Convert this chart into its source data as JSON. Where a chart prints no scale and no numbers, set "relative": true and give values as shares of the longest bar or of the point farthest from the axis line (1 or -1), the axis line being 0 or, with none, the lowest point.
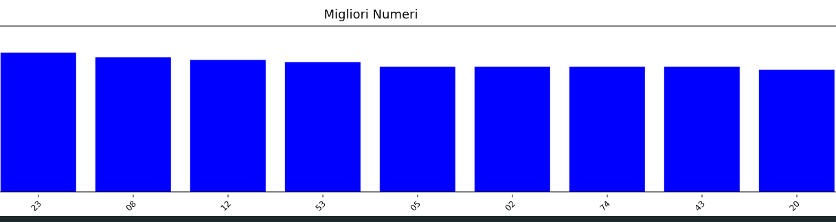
{
  "chart_data": {
    "type": "bar",
    "title": "Migliori Numeri",
    "categories": [
      "23",
      "08",
      "12",
      "53",
      "05",
      "02",
      "74",
      "43",
      "20"
    ],
    "values": [
      1,
      0.966,
      0.946,
      0.931,
      0.897,
      0.897,
      0.897,
      0.897,
      0.877
    ],
    "relative": true,
    "color": "#0000ff",
    "grid": false,
    "legend": false
  }
}
